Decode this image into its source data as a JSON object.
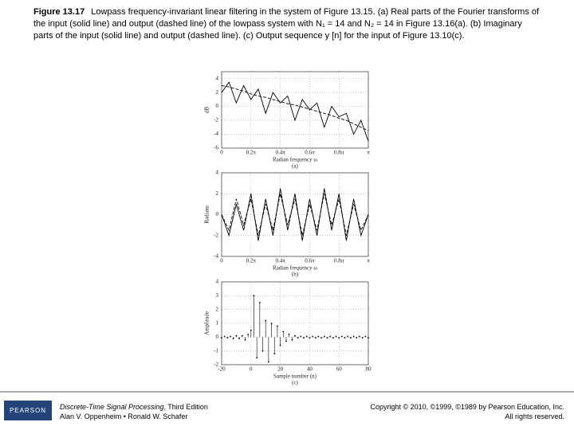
{
  "caption": {
    "label": "Figure 13.17",
    "text": "Lowpass frequency-invariant linear filtering in the system of Figure 13.15. (a) Real parts of the Fourier transforms of the input (solid line) and output (dashed line) of the lowpass system with N₁ = 14 and N₂ = 14 in Figure 13.16(a). (b) Imaginary parts of the input (solid line) and output (dashed line). (c) Output sequence y [n] for the input of Figure 13.10(c)."
  },
  "chart_data": [
    {
      "type": "line",
      "ylabel": "dB",
      "xlabel": "Radian frequency ω",
      "panel": "(a)",
      "x": [
        0,
        0.05,
        0.1,
        0.15,
        0.2,
        0.25,
        0.3,
        0.35,
        0.4,
        0.45,
        0.5,
        0.55,
        0.6,
        0.65,
        0.7,
        0.75,
        0.8,
        0.85,
        0.9,
        0.95,
        1
      ],
      "series": [
        {
          "color": "#000000",
          "style": "solid",
          "values": [
            2,
            3.5,
            0.5,
            3,
            1,
            2.5,
            -1,
            2,
            0.5,
            1.5,
            -2,
            1,
            -0.5,
            0.5,
            -3,
            0,
            -1.5,
            -1,
            -4,
            -2,
            -5
          ]
        },
        {
          "color": "#000000",
          "style": "dashed",
          "values": [
            3,
            2.8,
            2.5,
            2.2,
            1.8,
            1.5,
            1.3,
            1,
            0.7,
            0.4,
            0.2,
            -0.1,
            -0.4,
            -0.7,
            -1,
            -1.3,
            -1.7,
            -2,
            -2.5,
            -3,
            -3.5
          ]
        }
      ],
      "xlim": [
        0,
        1
      ],
      "xticks": [
        0,
        {
          "value": 0.2,
          "label": "0.2π"
        },
        {
          "value": 0.4,
          "label": "0.4π"
        },
        {
          "value": 0.6,
          "label": "0.6π"
        },
        {
          "value": 0.8,
          "label": "0.8π"
        },
        {
          "value": 1,
          "label": "π"
        }
      ],
      "ylim": [
        -6,
        5
      ],
      "yticks": [
        -6,
        -4,
        -2,
        0,
        2,
        4
      ],
      "grid": true
    },
    {
      "type": "line",
      "ylabel": "Radians",
      "xlabel": "Radian frequency ω",
      "panel": "(b)",
      "x": [
        0,
        0.05,
        0.1,
        0.15,
        0.2,
        0.25,
        0.3,
        0.35,
        0.4,
        0.45,
        0.5,
        0.55,
        0.6,
        0.65,
        0.7,
        0.75,
        0.8,
        0.85,
        0.9,
        0.95,
        1
      ],
      "series": [
        {
          "color": "#000000",
          "style": "solid",
          "values": [
            0,
            -2,
            1,
            -1.5,
            2,
            -2.5,
            1.5,
            -2,
            2.5,
            -1.5,
            2,
            -2.5,
            1.5,
            -2,
            2.5,
            -1.5,
            2,
            -2.5,
            1.5,
            -2,
            0
          ]
        },
        {
          "color": "#000000",
          "style": "dashed",
          "values": [
            0,
            -1.5,
            1.5,
            -1,
            1.5,
            -2,
            1,
            -1.5,
            2,
            -1,
            1.5,
            -2,
            1,
            -1.5,
            2,
            -1,
            1.5,
            -2,
            1,
            -1.5,
            0
          ]
        }
      ],
      "xlim": [
        0,
        1
      ],
      "xticks": [
        0,
        {
          "value": 0.2,
          "label": "0.2π"
        },
        {
          "value": 0.4,
          "label": "0.4π"
        },
        {
          "value": 0.6,
          "label": "0.6π"
        },
        {
          "value": 0.8,
          "label": "0.8π"
        },
        {
          "value": 1,
          "label": "π"
        }
      ],
      "ylim": [
        -4,
        4
      ],
      "yticks": [
        -4,
        -2,
        0,
        2,
        4
      ],
      "grid": true
    },
    {
      "type": "stem",
      "ylabel": "Amplitude",
      "xlabel": "Sample number (n)",
      "panel": "(c)",
      "x": [
        -20,
        -18,
        -16,
        -14,
        -12,
        -10,
        -8,
        -6,
        -4,
        -2,
        0,
        2,
        4,
        6,
        8,
        10,
        12,
        14,
        16,
        18,
        20,
        22,
        24,
        26,
        28,
        30,
        32,
        34,
        36,
        38,
        40,
        42,
        44,
        46,
        48,
        50,
        52,
        54,
        56,
        58,
        60,
        62,
        64,
        66,
        68,
        70,
        72,
        74,
        76,
        78,
        80
      ],
      "color": "#000000",
      "values": [
        -0.05,
        0.05,
        -0.05,
        0.05,
        -0.1,
        0.1,
        -0.1,
        0.1,
        -0.2,
        0.2,
        0.5,
        3,
        -1.5,
        2.5,
        -1,
        1.2,
        -1.8,
        1,
        -1.2,
        0.8,
        -0.6,
        0.4,
        -0.3,
        0.2,
        -0.2,
        0.1,
        -0.05,
        0.05,
        -0.05,
        0.05,
        -0.05,
        0.05,
        -0.05,
        0.05,
        -0.05,
        0.05,
        -0.05,
        0.05,
        -0.05,
        0.05,
        -0.05,
        0.05,
        -0.05,
        0.05,
        -0.05,
        0.05,
        -0.05,
        0.05,
        -0.05,
        0.05,
        -0.05
      ],
      "xlim": [
        -20,
        80
      ],
      "xticks": [
        -20,
        0,
        20,
        40,
        60,
        80
      ],
      "ylim": [
        -2,
        4
      ],
      "yticks": [
        -2,
        -1,
        0,
        1,
        2,
        3,
        4
      ],
      "grid": true
    }
  ],
  "footer": {
    "logo": "PEARSON",
    "book": "Discrete-Time Signal Processing",
    "edition": ", Third Edition",
    "authors": "Alan V. Oppenheim • Ronald W. Schafer",
    "copyright": "Copyright © 2010, ©1999, ©1989 by Pearson Education, Inc.",
    "rights": "All rights reserved."
  }
}
